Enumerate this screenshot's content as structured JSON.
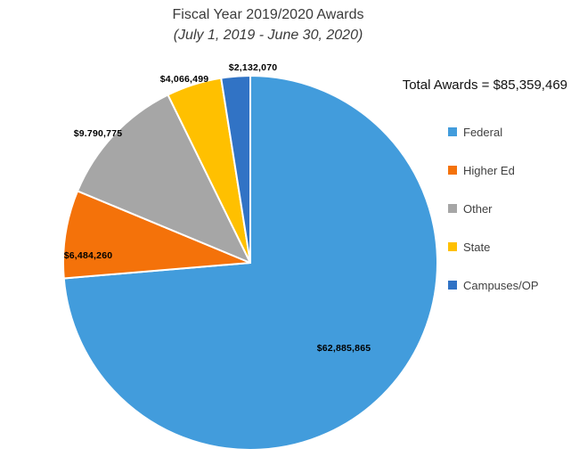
{
  "title": "Fiscal Year 2019/2020 Awards",
  "subtitle": "(July 1, 2019 - June 30, 2020)",
  "total_text": "Total Awards = $85,359,469",
  "chart_data": {
    "type": "pie",
    "title": "Fiscal Year 2019/2020 Awards",
    "subtitle": "(July 1, 2019 - June 30, 2020)",
    "total": 85359469,
    "total_text": "Total Awards = $85,359,469",
    "start_angle_deg": 0,
    "direction": "clockwise",
    "legend_position": "right",
    "slice_border_color": "#ffffff",
    "slices": [
      {
        "label": "Federal",
        "value": 62885865,
        "value_text": "$62,885,865",
        "color": "#429CDC"
      },
      {
        "label": "Higher Ed",
        "value": 6484260,
        "value_text": "$6,484,260",
        "color": "#F4720A"
      },
      {
        "label": "Other",
        "value": 9790775,
        "value_text": "$9.790,775",
        "color": "#A6A6A6"
      },
      {
        "label": "State",
        "value": 4066499,
        "value_text": "$4,066,499",
        "color": "#FFC000"
      },
      {
        "label": "Campuses/OP",
        "value": 2132070,
        "value_text": "$2,132,070",
        "color": "#3173C5"
      }
    ]
  }
}
